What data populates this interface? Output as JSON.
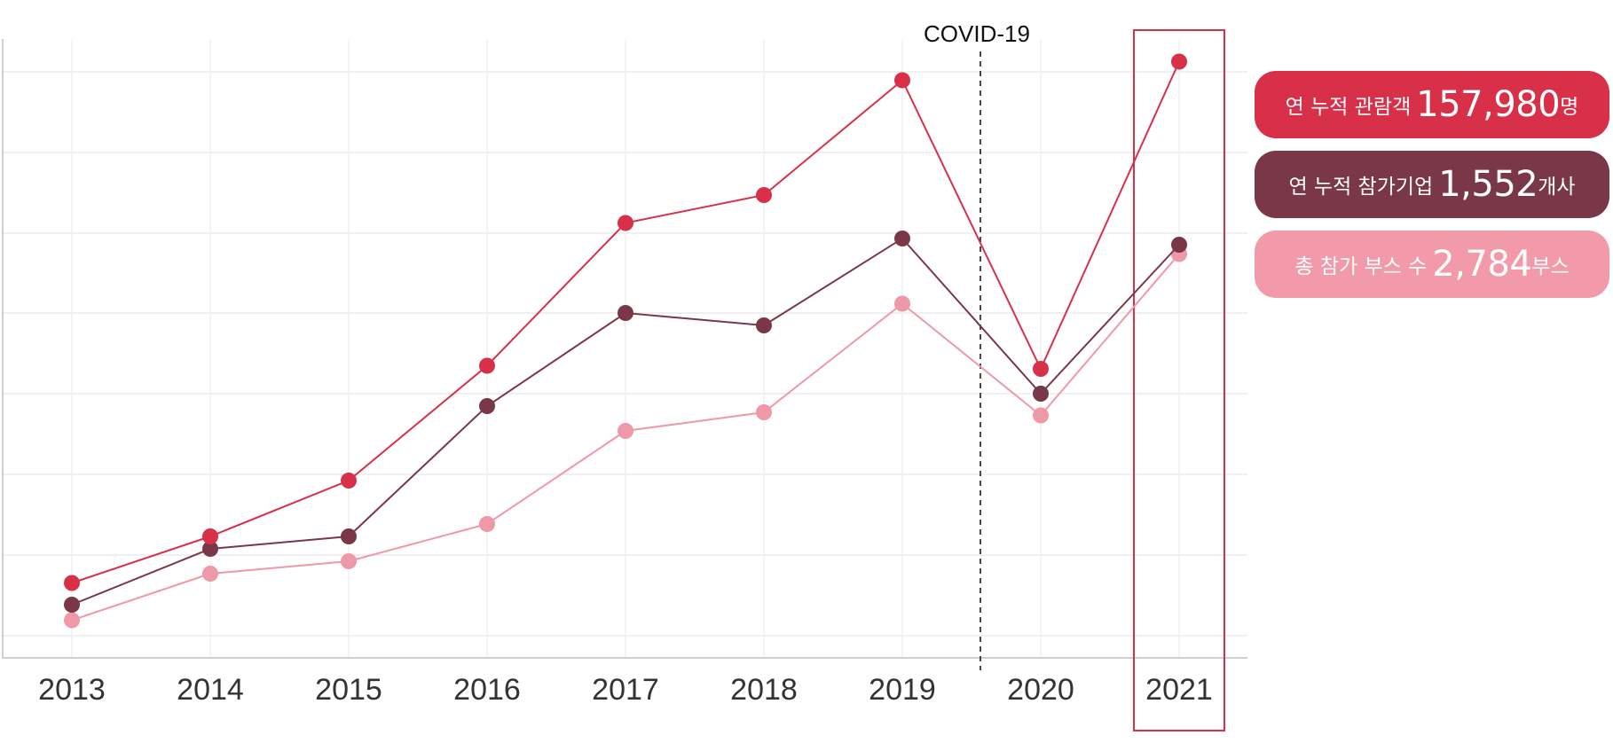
{
  "chart_data": {
    "type": "line",
    "categories": [
      "2013",
      "2014",
      "2015",
      "2016",
      "2017",
      "2018",
      "2019",
      "2020",
      "2021"
    ],
    "ylim": [
      0,
      140000
    ],
    "grid": true,
    "highlight_category": "2021",
    "annotation": {
      "label": "COVID-19",
      "between": [
        "2019",
        "2020"
      ]
    },
    "series": [
      {
        "key": "visitors",
        "color": "#d9304a",
        "values": [
          17000,
          32000,
          50000,
          87000,
          133000,
          142000,
          179000,
          86000,
          185000
        ]
      },
      {
        "key": "companies",
        "color": "#7a3747",
        "values": [
          10000,
          28000,
          32000,
          74000,
          104000,
          100000,
          128000,
          78000,
          126000
        ]
      },
      {
        "key": "booths",
        "color": "#ef98a8",
        "values": [
          5000,
          20000,
          24000,
          36000,
          66000,
          72000,
          107000,
          71000,
          123000
        ]
      }
    ]
  },
  "legend": [
    {
      "key": "visitors",
      "label": "연 누적 관람객",
      "value": "157,980",
      "unit": "명",
      "color": "#d9304a"
    },
    {
      "key": "companies",
      "label": "연 누적 참가기업",
      "value": "1,552",
      "unit": "개사",
      "color": "#7a3747"
    },
    {
      "key": "booths",
      "label": "총 참가 부스 수",
      "value": "2,784",
      "unit": "부스",
      "color": "#f29aaa"
    }
  ]
}
